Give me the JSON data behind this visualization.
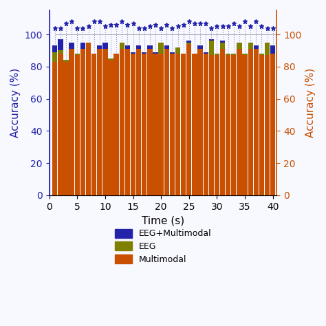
{
  "xlabel": "Time (s)",
  "ylabel_left": "Accuracy (%)",
  "ylabel_right": "Accuracy (%)",
  "xticks": [
    0,
    5,
    10,
    15,
    20,
    25,
    30,
    35,
    40
  ],
  "yticks": [
    0,
    20,
    40,
    60,
    80,
    100
  ],
  "n_groups": 40,
  "eeg_multimodal": [
    93,
    97,
    83,
    95,
    81,
    95,
    94,
    83,
    93,
    95,
    83,
    83,
    93,
    93,
    89,
    93,
    89,
    93,
    89,
    93,
    93,
    89,
    87,
    87,
    96,
    87,
    93,
    89,
    97,
    83,
    96,
    83,
    83,
    93,
    83,
    93,
    93,
    83,
    94,
    93
  ],
  "eeg": [
    89,
    90,
    84,
    91,
    88,
    91,
    95,
    88,
    91,
    91,
    85,
    87,
    95,
    91,
    88,
    91,
    88,
    91,
    88,
    95,
    91,
    88,
    92,
    88,
    95,
    88,
    91,
    88,
    96,
    88,
    95,
    88,
    88,
    95,
    88,
    95,
    91,
    88,
    95,
    88
  ],
  "multimodal": [
    83,
    88,
    83,
    91,
    87,
    91,
    95,
    88,
    91,
    91,
    84,
    88,
    91,
    91,
    88,
    91,
    88,
    91,
    88,
    88,
    91,
    88,
    88,
    88,
    94,
    88,
    91,
    88,
    87,
    87,
    91,
    87,
    87,
    91,
    87,
    91,
    91,
    87,
    87,
    88
  ],
  "dotted_line_color": "#9999cc",
  "eeg_multimodal_color": "#2222aa",
  "eeg_color": "#808000",
  "multimodal_color": "#c85000",
  "star_color": "#2222aa",
  "bar_width": 0.9,
  "left_axis_color": "#2222aa",
  "right_axis_color": "#c85000",
  "bg_color": "#f8f8ff",
  "ylim_display": 100,
  "ylim_internal": 115,
  "star_height": 108
}
